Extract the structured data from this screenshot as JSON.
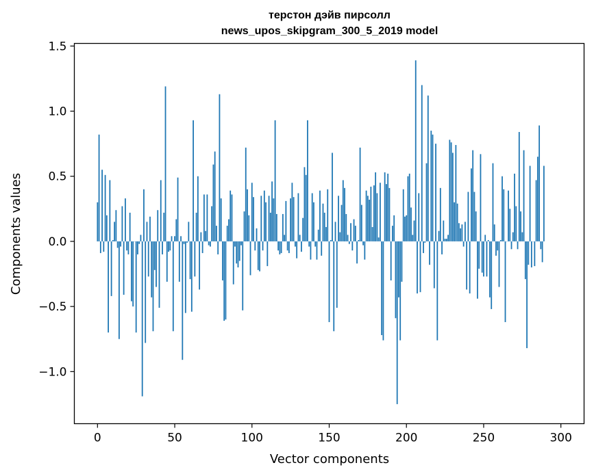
{
  "chart_data": {
    "type": "bar",
    "title": "терстон дэйв пирсолл",
    "subtitle": "news_upos_skipgram_300_5_2019 model",
    "xlabel": "Vector components",
    "ylabel": "Components values",
    "xlim": [
      -15,
      315
    ],
    "ylim": [
      -1.4,
      1.52
    ],
    "xticks": [
      0,
      50,
      100,
      150,
      200,
      250,
      300
    ],
    "yticks": [
      -1.0,
      -0.5,
      0.0,
      0.5,
      1.0,
      1.5
    ],
    "xtick_labels": [
      "0",
      "50",
      "100",
      "150",
      "200",
      "250",
      "300"
    ],
    "ytick_labels": [
      "−1.0",
      "−0.5",
      "0.0",
      "0.5",
      "1.0",
      "1.5"
    ],
    "grid": false,
    "bar_color": "#1f77b4",
    "x_start": 0,
    "values": [
      0.3,
      0.82,
      -0.09,
      0.55,
      -0.08,
      0.51,
      0.2,
      -0.7,
      0.47,
      -0.42,
      0.01,
      0.15,
      0.24,
      -0.05,
      -0.75,
      -0.04,
      0.27,
      -0.41,
      0.33,
      -0.07,
      -0.1,
      0.22,
      -0.46,
      -0.5,
      0.0,
      -0.7,
      -0.1,
      -0.02,
      0.05,
      -1.19,
      0.4,
      -0.78,
      0.15,
      -0.27,
      0.19,
      -0.43,
      -0.69,
      -0.22,
      -0.35,
      0.24,
      -0.51,
      0.47,
      -0.1,
      0.22,
      1.19,
      -0.31,
      -0.08,
      -0.07,
      0.04,
      -0.69,
      0.04,
      0.17,
      0.49,
      -0.31,
      0.04,
      -0.91,
      -0.02,
      -0.55,
      -0.01,
      0.15,
      -0.29,
      -0.54,
      0.93,
      -0.27,
      0.22,
      0.5,
      -0.37,
      0.07,
      -0.09,
      0.36,
      0.08,
      0.36,
      -0.03,
      -0.04,
      0.27,
      0.59,
      0.69,
      0.12,
      -0.1,
      1.13,
      0.33,
      -0.3,
      -0.61,
      -0.6,
      0.12,
      0.17,
      0.39,
      0.36,
      -0.33,
      -0.04,
      -0.17,
      -0.2,
      -0.15,
      -0.03,
      -0.53,
      0.23,
      0.72,
      0.4,
      0.2,
      -0.26,
      0.45,
      0.34,
      -0.07,
      0.1,
      -0.22,
      -0.23,
      0.35,
      -0.07,
      0.39,
      0.3,
      -0.19,
      0.35,
      0.22,
      0.46,
      0.33,
      0.93,
      0.21,
      -0.07,
      -0.1,
      -0.09,
      0.21,
      0.05,
      0.31,
      -0.07,
      -0.09,
      0.33,
      0.45,
      0.34,
      -0.04,
      -0.13,
      0.37,
      0.05,
      -0.08,
      0.18,
      0.57,
      0.51,
      0.93,
      -0.04,
      -0.14,
      0.37,
      0.3,
      -0.04,
      -0.14,
      0.09,
      0.39,
      -0.11,
      0.29,
      0.22,
      0.11,
      0.4,
      -0.62,
      0.01,
      0.68,
      -0.69,
      0.15,
      -0.51,
      0.35,
      0.07,
      0.28,
      0.47,
      0.41,
      0.21,
      0.05,
      -0.02,
      0.14,
      -0.07,
      0.17,
      0.12,
      -0.17,
      0.01,
      0.72,
      0.28,
      -0.03,
      -0.14,
      0.39,
      0.35,
      0.32,
      0.42,
      0.11,
      0.43,
      0.53,
      0.37,
      0.03,
      0.45,
      -0.72,
      -0.76,
      0.53,
      0.44,
      0.52,
      0.41,
      -0.3,
      0.12,
      0.2,
      -0.59,
      -1.25,
      -0.43,
      -0.76,
      -0.31,
      0.4,
      0.19,
      0.2,
      0.5,
      0.52,
      0.26,
      0.05,
      0.16,
      1.39,
      -0.4,
      0.37,
      -0.39,
      1.2,
      -0.09,
      -0.01,
      0.6,
      1.12,
      -0.18,
      0.85,
      0.82,
      -0.36,
      0.75,
      -0.76,
      0.08,
      0.41,
      -0.1,
      0.16,
      0.02,
      0.02,
      0.05,
      0.78,
      0.76,
      0.68,
      0.3,
      0.74,
      0.29,
      0.14,
      0.1,
      0.13,
      -0.04,
      0.15,
      -0.37,
      0.38,
      -0.4,
      0.56,
      0.7,
      0.38,
      0.23,
      -0.44,
      -0.21,
      0.67,
      -0.24,
      -0.27,
      0.05,
      -0.27,
      0.01,
      -0.43,
      -0.52,
      0.6,
      0.13,
      -0.11,
      -0.07,
      -0.35,
      0.01,
      0.5,
      0.4,
      -0.62,
      0.0,
      0.39,
      0.25,
      -0.06,
      0.07,
      0.52,
      0.27,
      -0.06,
      0.84,
      0.23,
      0.07,
      0.7,
      -0.29,
      -0.82,
      -0.18,
      0.58,
      -0.2,
      0.0,
      -0.19,
      0.47,
      0.65,
      0.89,
      -0.06,
      -0.16,
      0.58
    ]
  }
}
